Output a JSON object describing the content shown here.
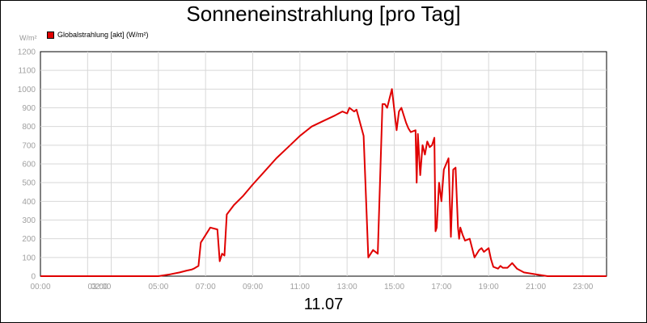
{
  "chart_data": {
    "type": "line",
    "title": "Sonneneinstrahlung [pro Tag]",
    "unit_label": "W/m²",
    "date_label": "11.07",
    "ylim": [
      0,
      1200
    ],
    "y_ticks": [
      0,
      100,
      200,
      300,
      400,
      500,
      600,
      700,
      800,
      900,
      1000,
      1100,
      1200
    ],
    "xlim": [
      0,
      24
    ],
    "x_ticks": [
      {
        "label": "00:00",
        "hour": 0
      },
      {
        "label": "02:00",
        "hour": 2
      },
      {
        "label": "03:00",
        "hour": 3
      },
      {
        "label": "05:00",
        "hour": 5
      },
      {
        "label": "07:00",
        "hour": 7
      },
      {
        "label": "09:00",
        "hour": 9
      },
      {
        "label": "11:00",
        "hour": 11
      },
      {
        "label": "13:00",
        "hour": 13
      },
      {
        "label": "15:00",
        "hour": 15
      },
      {
        "label": "17:00",
        "hour": 17
      },
      {
        "label": "19:00",
        "hour": 19
      },
      {
        "label": "21:00",
        "hour": 21
      },
      {
        "label": "23:00",
        "hour": 23
      }
    ],
    "grid": true,
    "legend_position": "top-left",
    "series": [
      {
        "name": "Globalstrahlung [akt] (W/m²)",
        "color": "#e00000",
        "x": [
          0,
          5,
          5.5,
          5.9,
          6.2,
          6.4,
          6.5,
          6.7,
          6.8,
          6.9,
          7.2,
          7.5,
          7.6,
          7.7,
          7.8,
          7.9,
          8.2,
          8.6,
          9.0,
          9.5,
          10.0,
          10.5,
          11.0,
          11.5,
          12.0,
          12.5,
          12.8,
          13.0,
          13.1,
          13.3,
          13.4,
          13.7,
          13.9,
          14.1,
          14.3,
          14.5,
          14.6,
          14.7,
          14.9,
          15.1,
          15.2,
          15.3,
          15.4,
          15.5,
          15.6,
          15.7,
          15.9,
          15.95,
          16.0,
          16.1,
          16.2,
          16.3,
          16.4,
          16.5,
          16.6,
          16.7,
          16.75,
          16.8,
          16.9,
          17.0,
          17.1,
          17.2,
          17.3,
          17.4,
          17.5,
          17.6,
          17.7,
          17.75,
          17.8,
          17.9,
          18.0,
          18.2,
          18.4,
          18.6,
          18.7,
          18.8,
          19.0,
          19.1,
          19.2,
          19.4,
          19.5,
          19.6,
          19.8,
          20.0,
          20.2,
          20.5,
          21.0,
          21.5,
          22.0,
          24.0
        ],
        "values": [
          0,
          0,
          10,
          20,
          30,
          35,
          40,
          55,
          180,
          200,
          260,
          250,
          80,
          120,
          110,
          330,
          380,
          430,
          490,
          560,
          630,
          690,
          750,
          800,
          830,
          860,
          880,
          870,
          900,
          880,
          890,
          750,
          100,
          140,
          120,
          920,
          920,
          900,
          1000,
          780,
          880,
          900,
          860,
          820,
          790,
          770,
          780,
          500,
          760,
          540,
          700,
          650,
          720,
          690,
          700,
          740,
          240,
          260,
          500,
          400,
          570,
          600,
          630,
          210,
          570,
          580,
          260,
          200,
          260,
          220,
          190,
          200,
          100,
          140,
          150,
          130,
          150,
          90,
          50,
          40,
          55,
          45,
          45,
          70,
          40,
          20,
          10,
          0,
          0,
          0
        ]
      }
    ]
  }
}
